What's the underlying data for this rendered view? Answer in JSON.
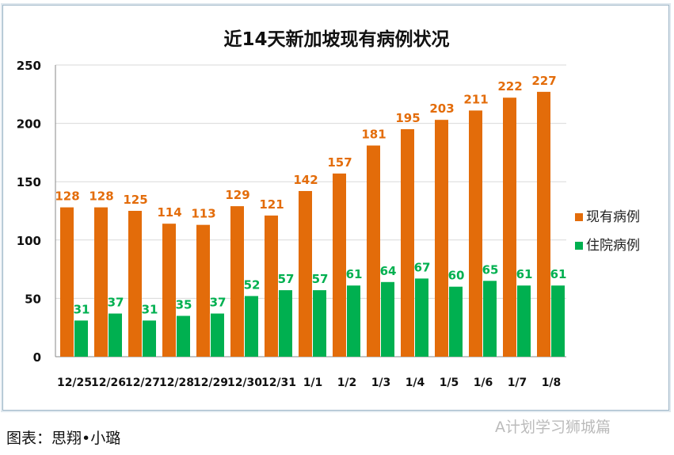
{
  "chart_data": {
    "type": "bar",
    "title": "近14天新加坡现有病例状况",
    "categories": [
      "12/25",
      "12/26",
      "12/27",
      "12/28",
      "12/29",
      "12/30",
      "12/31",
      "1/1",
      "1/2",
      "1/3",
      "1/4",
      "1/5",
      "1/6",
      "1/7",
      "1/8"
    ],
    "series": [
      {
        "name": "现有病例",
        "color": "#e36c0a",
        "values": [
          128,
          128,
          125,
          114,
          113,
          129,
          121,
          142,
          157,
          181,
          195,
          203,
          211,
          222,
          227
        ]
      },
      {
        "name": "住院病例",
        "color": "#00b050",
        "values": [
          31,
          37,
          31,
          35,
          37,
          52,
          57,
          57,
          61,
          64,
          67,
          60,
          65,
          61,
          61
        ]
      }
    ],
    "ylim": [
      0,
      250
    ],
    "yticks": [
      0,
      50,
      100,
      150,
      200,
      250
    ],
    "grid": true,
    "legend": "right",
    "data_labels": true
  },
  "caption": "图表：思翔•小璐",
  "watermark": "A计划学习狮城篇"
}
